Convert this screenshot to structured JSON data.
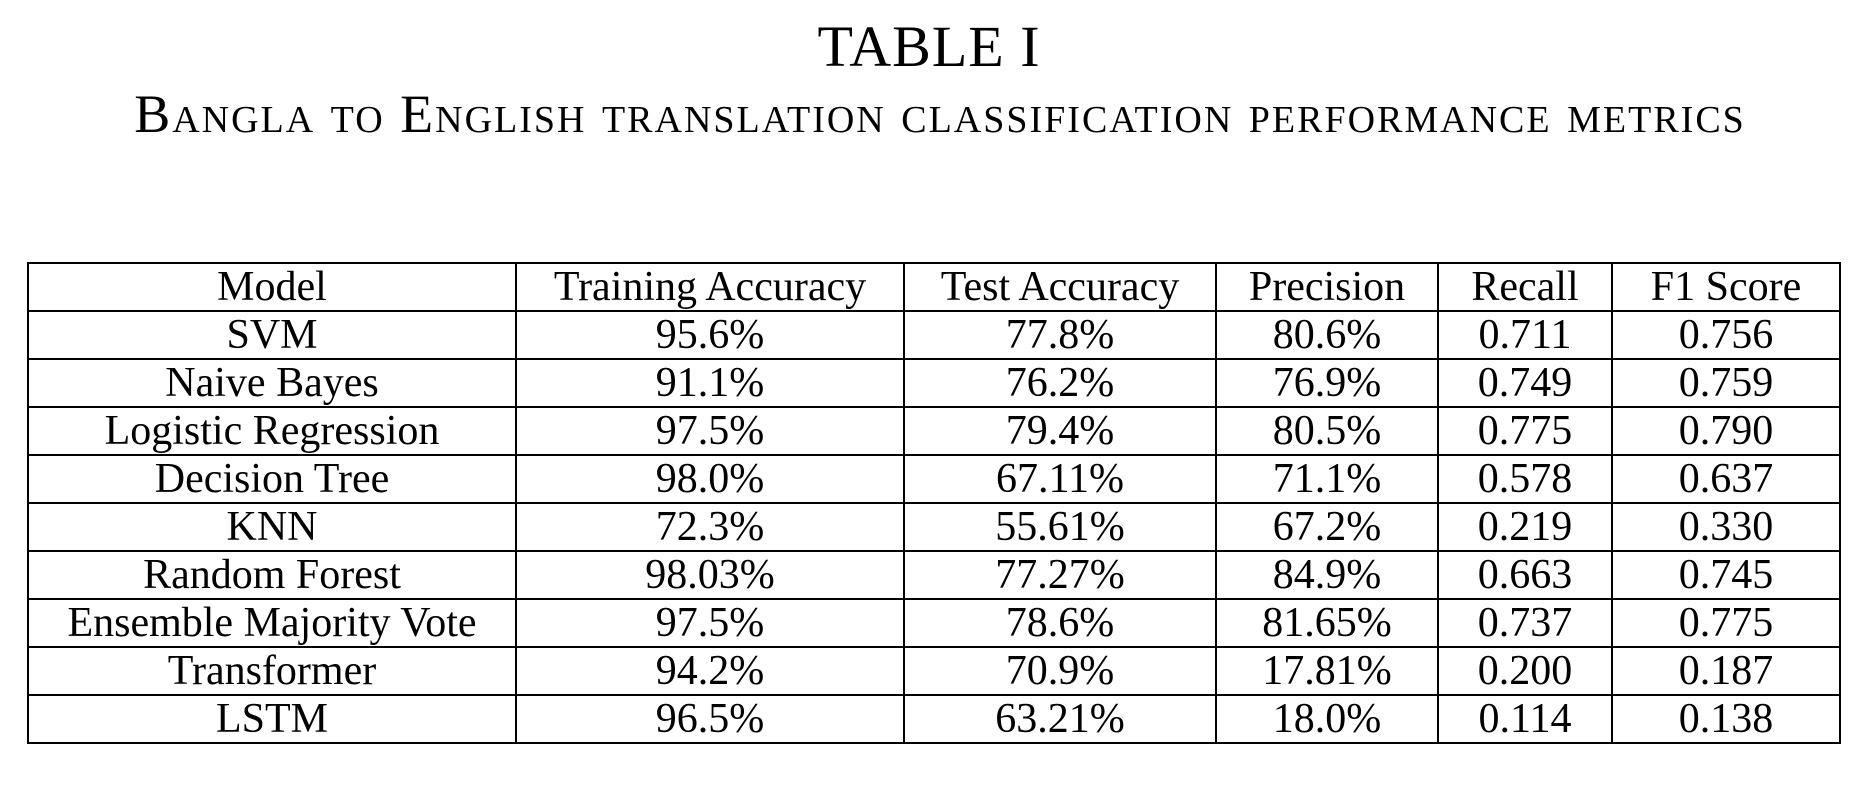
{
  "table_label": "TABLE I",
  "table_title": "Bangla to English translation classification performance metrics",
  "columns": [
    "Model",
    "Training Accuracy",
    "Test Accuracy",
    "Precision",
    "Recall",
    "F1 Score"
  ],
  "rows": [
    [
      "SVM",
      "95.6%",
      "77.8%",
      "80.6%",
      "0.711",
      "0.756"
    ],
    [
      "Naive Bayes",
      "91.1%",
      "76.2%",
      "76.9%",
      "0.749",
      "0.759"
    ],
    [
      "Logistic Regression",
      "97.5%",
      "79.4%",
      "80.5%",
      "0.775",
      "0.790"
    ],
    [
      "Decision Tree",
      "98.0%",
      "67.11%",
      "71.1%",
      "0.578",
      "0.637"
    ],
    [
      "KNN",
      "72.3%",
      "55.61%",
      "67.2%",
      "0.219",
      "0.330"
    ],
    [
      "Random Forest",
      "98.03%",
      "77.27%",
      "84.9%",
      "0.663",
      "0.745"
    ],
    [
      "Ensemble Majority Vote",
      "97.5%",
      "78.6%",
      "81.65%",
      "0.737",
      "0.775"
    ],
    [
      "Transformer",
      "94.2%",
      "70.9%",
      "17.81%",
      "0.200",
      "0.187"
    ],
    [
      "LSTM",
      "96.5%",
      "63.21%",
      "18.0%",
      "0.114",
      "0.138"
    ]
  ]
}
